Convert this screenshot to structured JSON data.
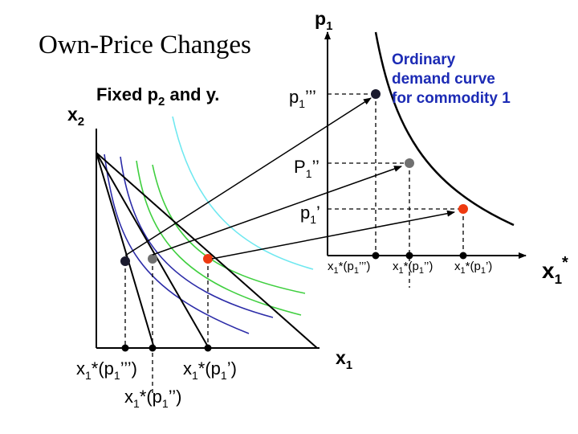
{
  "title": "Own-Price Changes",
  "left_panel": {
    "subtitle_pre": "Fixed p",
    "subtitle_sub": "2",
    "subtitle_post": " and y.",
    "y_axis_main": "x",
    "y_axis_sub": "2",
    "x_axis_main": "x",
    "x_axis_sub": "1",
    "labels": [
      {
        "pre": "x",
        "sub": "1",
        "post": "*(p",
        "sub2": "1",
        "post2": "’’’)"
      },
      {
        "pre": "x",
        "sub": "1",
        "post": "*(p",
        "sub2": "1",
        "post2": "’)"
      },
      {
        "pre": "x",
        "sub": "1",
        "post": "*(p",
        "sub2": "1",
        "post2": "’’)"
      }
    ]
  },
  "right_panel": {
    "y_axis_main": "p",
    "y_axis_sub": "1",
    "x_axis_main": "x",
    "x_axis_sub": "1",
    "x_axis_sup": "*",
    "curve_label": [
      "Ordinary",
      "demand curve",
      "for commodity 1"
    ],
    "price_labels": [
      {
        "main": "p",
        "sub": "1",
        "post": "’’’"
      },
      {
        "main": "P",
        "sub": "1",
        "post": "’’"
      },
      {
        "main": "p",
        "sub": "1",
        "post": "’"
      }
    ],
    "quantity_labels": [
      {
        "pre": "x",
        "sub": "1",
        "post": "*(p",
        "sub2": "1",
        "post2": "’’’)"
      },
      {
        "pre": "x",
        "sub": "1",
        "post": "*(p",
        "sub2": "1",
        "post2": "’’)"
      },
      {
        "pre": "x",
        "sub": "1",
        "post": "*(p",
        "sub2": "1",
        "post2": "’)"
      }
    ]
  },
  "colors": {
    "axis": "#000000",
    "indiff_dark_blue": "#2c2ca8",
    "indiff_green": "#3fcf3f",
    "indiff_cyan": "#6fe8f0",
    "point_black": "#1a1a2e",
    "point_gray": "#707070",
    "point_red": "#ee3a10",
    "budget": "#000000"
  }
}
